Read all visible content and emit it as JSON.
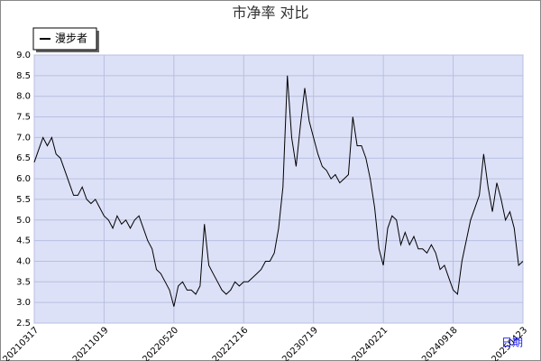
{
  "chart_data": {
    "type": "line",
    "title": "市净率  对比",
    "x_label": "日期",
    "categories": [
      "20210317",
      null,
      null,
      null,
      null,
      null,
      null,
      null,
      null,
      null,
      null,
      null,
      null,
      null,
      null,
      null,
      "20211019",
      null,
      null,
      null,
      null,
      null,
      null,
      null,
      null,
      null,
      null,
      null,
      null,
      null,
      null,
      null,
      "20220520",
      null,
      null,
      null,
      null,
      null,
      null,
      null,
      null,
      null,
      null,
      null,
      null,
      null,
      null,
      null,
      "20221216",
      null,
      null,
      null,
      null,
      null,
      null,
      null,
      null,
      null,
      null,
      null,
      null,
      null,
      null,
      null,
      "20230719",
      null,
      null,
      null,
      null,
      null,
      null,
      null,
      null,
      null,
      null,
      null,
      null,
      null,
      null,
      null,
      "20240221",
      null,
      null,
      null,
      null,
      null,
      null,
      null,
      null,
      null,
      null,
      null,
      null,
      null,
      null,
      null,
      "20240918",
      null,
      null,
      null,
      null,
      null,
      null,
      null,
      null,
      null,
      null,
      null,
      null,
      null,
      null,
      null,
      "20250423"
    ],
    "series": [
      {
        "name": "漫步者",
        "color": "#000000",
        "values": [
          6.4,
          6.7,
          7.0,
          6.8,
          7.0,
          6.6,
          6.5,
          6.2,
          5.9,
          5.6,
          5.6,
          5.8,
          5.5,
          5.4,
          5.5,
          5.3,
          5.1,
          5.0,
          4.8,
          5.1,
          4.9,
          5.0,
          4.8,
          5.0,
          5.1,
          4.8,
          4.5,
          4.3,
          3.8,
          3.7,
          3.5,
          3.3,
          2.9,
          3.4,
          3.5,
          3.3,
          3.3,
          3.2,
          3.4,
          4.9,
          3.9,
          3.7,
          3.5,
          3.3,
          3.2,
          3.3,
          3.5,
          3.4,
          3.5,
          3.5,
          3.6,
          3.7,
          3.8,
          4.0,
          4.0,
          4.2,
          4.8,
          5.8,
          8.5,
          7.0,
          6.3,
          7.3,
          8.2,
          7.4,
          7.0,
          6.6,
          6.3,
          6.2,
          6.0,
          6.1,
          5.9,
          6.0,
          6.1,
          7.5,
          6.8,
          6.8,
          6.5,
          6.0,
          5.3,
          4.3,
          3.9,
          4.8,
          5.1,
          5.0,
          4.4,
          4.7,
          4.4,
          4.6,
          4.3,
          4.3,
          4.2,
          4.4,
          4.2,
          3.8,
          3.9,
          3.6,
          3.3,
          3.2,
          4.0,
          4.5,
          5.0,
          5.3,
          5.6,
          6.6,
          5.8,
          5.2,
          5.9,
          5.5,
          5.0,
          5.2,
          4.8,
          3.9,
          4.0
        ]
      }
    ],
    "ylim": [
      2.5,
      9.0
    ],
    "yticks": [
      2.5,
      {
        "value": 3,
        "label": "3.0"
      },
      3.5,
      {
        "value": 4,
        "label": "4.0"
      },
      4.5,
      {
        "value": 5,
        "label": "5.0"
      },
      5.5,
      {
        "value": 6,
        "label": "6.0"
      },
      6.5,
      {
        "value": 7,
        "label": "7.0"
      },
      7.5,
      {
        "value": 8,
        "label": "8.0"
      },
      8.5,
      {
        "value": 9,
        "label": "9.0"
      }
    ],
    "grid": true
  }
}
